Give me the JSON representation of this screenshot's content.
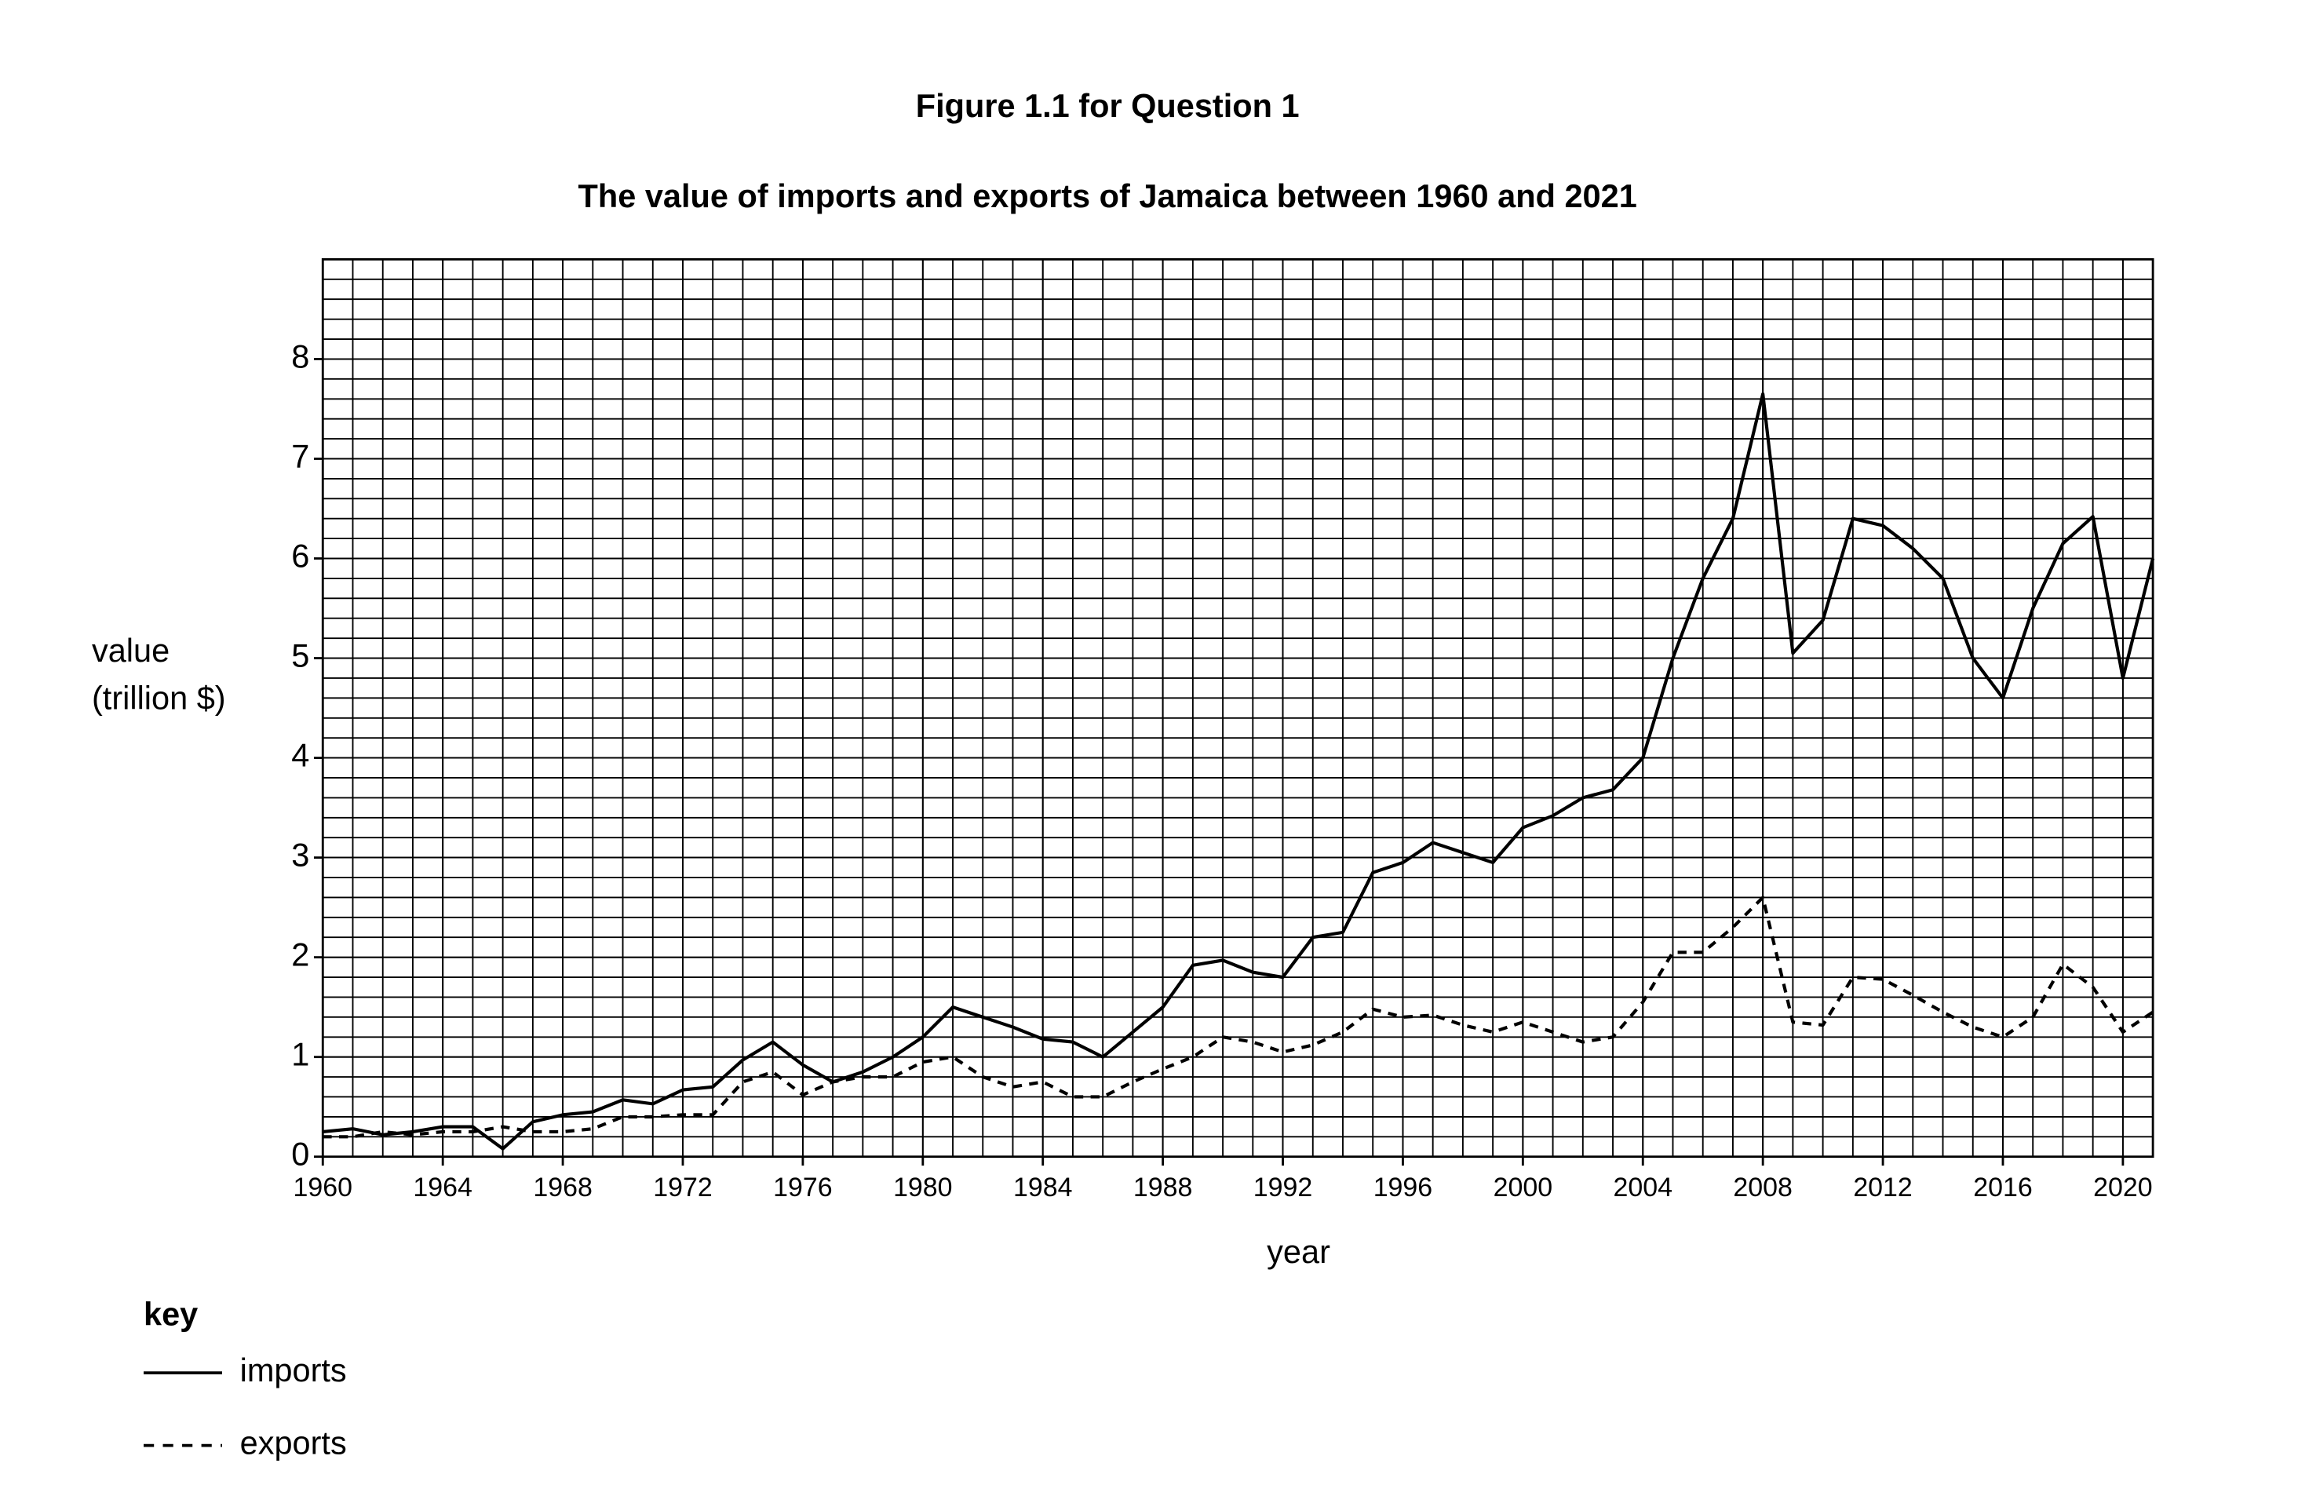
{
  "chart_data": {
    "type": "line",
    "title": "Figure 1.1 for Question 1",
    "subtitle": "The value of imports and exports of Jamaica between 1960 and 2021",
    "y_label": [
      "value",
      "(trillion $)"
    ],
    "x_label": "year",
    "legend_title": "key",
    "legend_position": "bottom-left",
    "grid": true,
    "x": [
      1960,
      1961,
      1962,
      1963,
      1964,
      1965,
      1966,
      1967,
      1968,
      1969,
      1970,
      1971,
      1972,
      1973,
      1974,
      1975,
      1976,
      1977,
      1978,
      1979,
      1980,
      1981,
      1982,
      1983,
      1984,
      1985,
      1986,
      1987,
      1988,
      1989,
      1990,
      1991,
      1992,
      1993,
      1994,
      1995,
      1996,
      1997,
      1998,
      1999,
      2000,
      2001,
      2002,
      2003,
      2004,
      2005,
      2006,
      2007,
      2008,
      2009,
      2010,
      2011,
      2012,
      2013,
      2014,
      2015,
      2016,
      2017,
      2018,
      2019,
      2020,
      2021
    ],
    "series": [
      {
        "name": "imports",
        "color": "#000000",
        "style": "solid",
        "values": [
          0.25,
          0.28,
          0.22,
          0.25,
          0.3,
          0.3,
          0.08,
          0.35,
          0.42,
          0.45,
          0.57,
          0.53,
          0.67,
          0.7,
          0.97,
          1.15,
          0.92,
          0.75,
          0.85,
          1.0,
          1.2,
          1.5,
          1.4,
          1.3,
          1.18,
          1.15,
          1.0,
          1.25,
          1.5,
          1.92,
          1.97,
          1.85,
          1.8,
          2.2,
          2.25,
          2.85,
          2.95,
          3.15,
          3.05,
          2.95,
          3.3,
          3.42,
          3.6,
          3.68,
          4.0,
          5.0,
          5.8,
          6.4,
          7.65,
          5.05,
          5.38,
          6.4,
          6.33,
          6.1,
          5.8,
          5.0,
          4.6,
          5.5,
          6.15,
          6.42,
          4.8,
          6.0
        ]
      },
      {
        "name": "exports",
        "color": "#000000",
        "style": "dashed",
        "values": [
          0.2,
          0.2,
          0.25,
          0.22,
          0.25,
          0.25,
          0.3,
          0.25,
          0.25,
          0.28,
          0.4,
          0.4,
          0.42,
          0.42,
          0.75,
          0.85,
          0.62,
          0.75,
          0.8,
          0.8,
          0.95,
          1.0,
          0.8,
          0.7,
          0.75,
          0.6,
          0.6,
          0.75,
          0.88,
          1.0,
          1.2,
          1.15,
          1.05,
          1.12,
          1.25,
          1.48,
          1.4,
          1.42,
          1.32,
          1.25,
          1.35,
          1.25,
          1.15,
          1.2,
          1.55,
          2.05,
          2.05,
          2.3,
          2.6,
          1.35,
          1.32,
          1.8,
          1.78,
          1.62,
          1.45,
          1.3,
          1.2,
          1.4,
          1.93,
          1.7,
          1.25,
          1.45
        ]
      }
    ],
    "xlim": [
      1960,
      2021
    ],
    "xticks": [
      1960,
      1964,
      1968,
      1972,
      1976,
      1980,
      1984,
      1988,
      1992,
      1996,
      2000,
      2004,
      2008,
      2012,
      2016,
      2020
    ],
    "ylim": [
      0,
      9
    ],
    "yticks": [
      0,
      1,
      2,
      3,
      4,
      5,
      6,
      7,
      8
    ]
  }
}
